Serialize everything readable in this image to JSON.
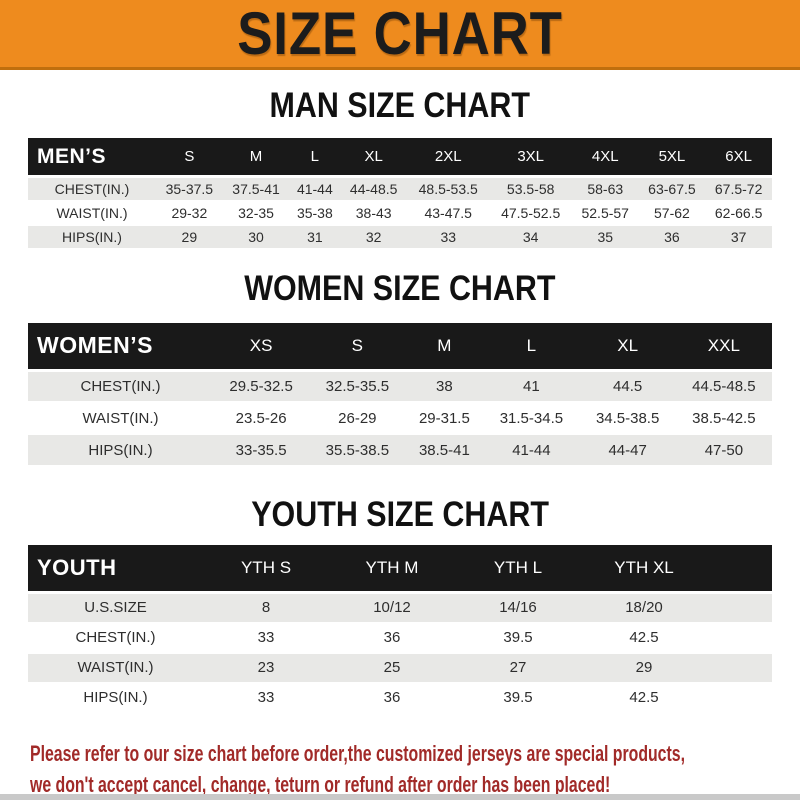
{
  "banner": {
    "title": "SIZE CHART"
  },
  "colors": {
    "banner_bg": "#ee8b1e",
    "header_bar": "#191919",
    "row_alt": "#e8e8e6",
    "note_red": "#a12a28"
  },
  "sections": [
    {
      "heading": "MAN SIZE CHART",
      "table": {
        "label": "MEN’S",
        "columns": [
          "S",
          "M",
          "L",
          "XL",
          "2XL",
          "3XL",
          "4XL",
          "5XL",
          "6XL"
        ],
        "rows": [
          {
            "label": "CHEST(IN.)",
            "values": [
              "35-37.5",
              "37.5-41",
              "41-44",
              "44-48.5",
              "48.5-53.5",
              "53.5-58",
              "58-63",
              "63-67.5",
              "67.5-72"
            ]
          },
          {
            "label": "WAIST(IN.)",
            "values": [
              "29-32",
              "32-35",
              "35-38",
              "38-43",
              "43-47.5",
              "47.5-52.5",
              "52.5-57",
              "57-62",
              "62-66.5"
            ]
          },
          {
            "label": "HIPS(IN.)",
            "values": [
              "29",
              "30",
              "31",
              "32",
              "33",
              "34",
              "35",
              "36",
              "37"
            ]
          }
        ]
      }
    },
    {
      "heading": "WOMEN SIZE CHART",
      "table": {
        "label": "WOMEN’S",
        "columns": [
          "XS",
          "S",
          "M",
          "L",
          "XL",
          "XXL"
        ],
        "rows": [
          {
            "label": "CHEST(IN.)",
            "values": [
              "29.5-32.5",
              "32.5-35.5",
              "38",
              "41",
              "44.5",
              "44.5-48.5"
            ]
          },
          {
            "label": "WAIST(IN.)",
            "values": [
              "23.5-26",
              "26-29",
              "29-31.5",
              "31.5-34.5",
              "34.5-38.5",
              "38.5-42.5"
            ]
          },
          {
            "label": "HIPS(IN.)",
            "values": [
              "33-35.5",
              "35.5-38.5",
              "38.5-41",
              "41-44",
              "44-47",
              "47-50"
            ]
          }
        ]
      }
    },
    {
      "heading": "YOUTH SIZE CHART",
      "table": {
        "label": "YOUTH",
        "columns": [
          "YTH S",
          "YTH M",
          "YTH L",
          "YTH XL"
        ],
        "trailing_blank": true,
        "rows": [
          {
            "label": "U.S.SIZE",
            "values": [
              "8",
              "10/12",
              "14/16",
              "18/20"
            ]
          },
          {
            "label": "CHEST(IN.)",
            "values": [
              "33",
              "36",
              "39.5",
              "42.5"
            ]
          },
          {
            "label": "WAIST(IN.)",
            "values": [
              "23",
              "25",
              "27",
              "29"
            ]
          },
          {
            "label": "HIPS(IN.)",
            "values": [
              "33",
              "36",
              "39.5",
              "42.5"
            ]
          }
        ]
      }
    }
  ],
  "footer_note": {
    "lines": [
      "Please refer to our size chart before order,the customized jerseys are special products,",
      "we don't accept cancel, change, teturn or refund after order has been placed!"
    ]
  }
}
